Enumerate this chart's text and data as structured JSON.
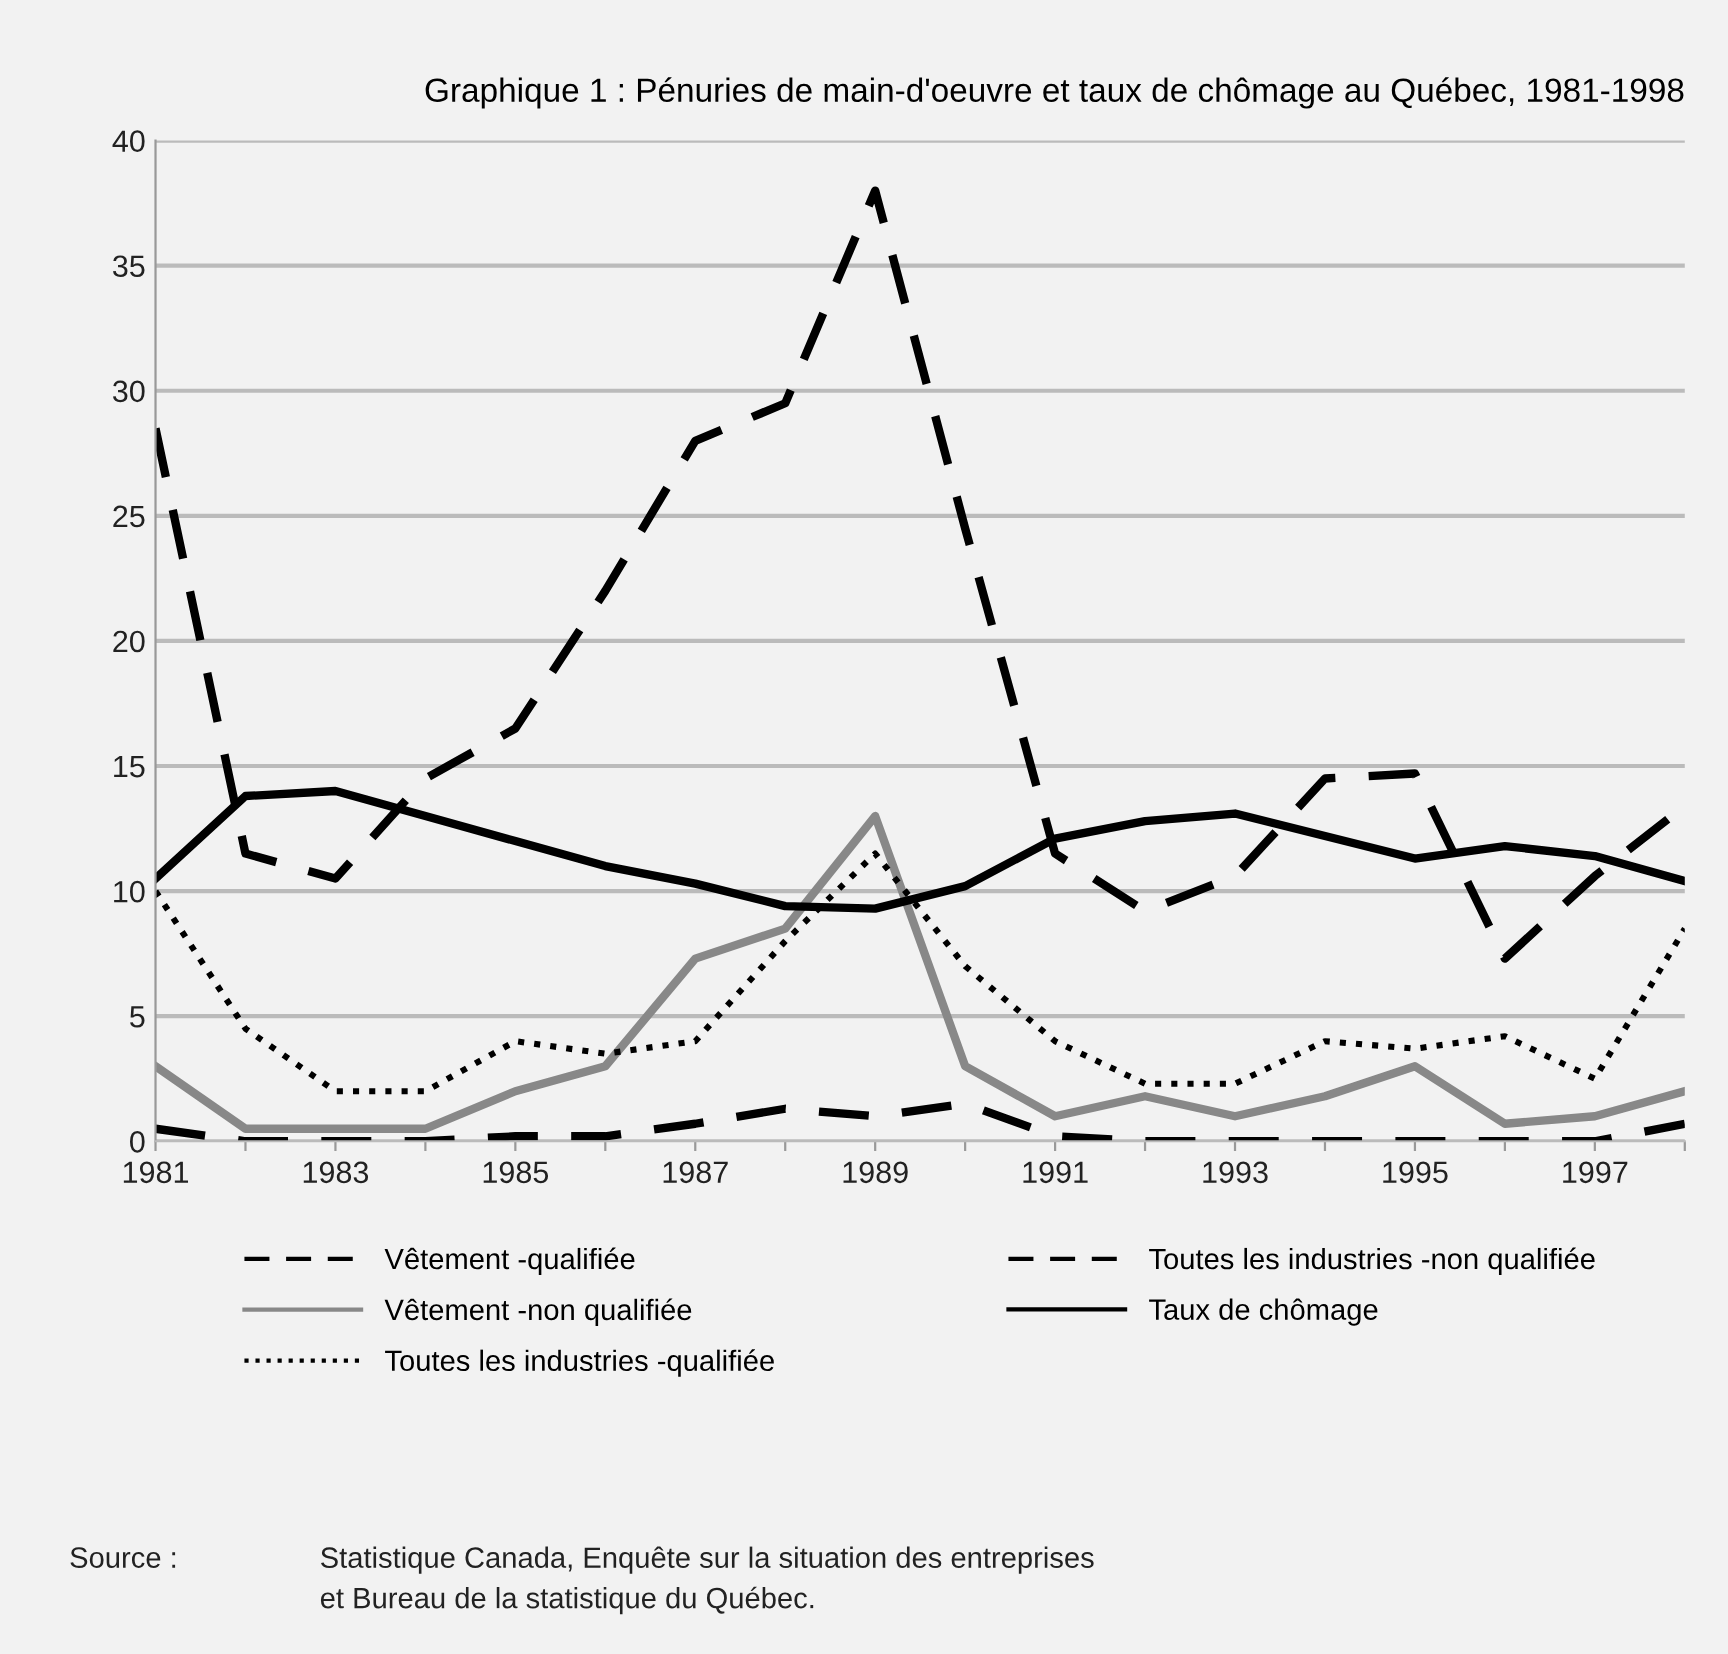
{
  "chart_data": {
    "type": "line",
    "title": "Graphique 1 : Pénuries de main-d'oeuvre et taux de chômage au Québec, 1981-1998",
    "x": [
      1981,
      1982,
      1983,
      1984,
      1985,
      1986,
      1987,
      1988,
      1989,
      1990,
      1991,
      1992,
      1993,
      1994,
      1995,
      1996,
      1997,
      1998
    ],
    "series": [
      {
        "name": "Vêtement -qualifiée",
        "color": "#000000",
        "line_style": "dashed",
        "values": [
          28.5,
          11.5,
          10.5,
          14.5,
          16.5,
          22,
          28,
          29.5,
          38,
          24.5,
          11.5,
          9.2,
          10.6,
          14.5,
          14.7,
          7.3,
          10.6,
          13.4
        ]
      },
      {
        "name": "Vêtement -non qualifiée",
        "color": "#888888",
        "line_style": "solid",
        "values": [
          3,
          0.5,
          0.5,
          0.5,
          2,
          3,
          7.3,
          8.5,
          13,
          3,
          1,
          1.8,
          1,
          1.8,
          3,
          0.7,
          1,
          2
        ]
      },
      {
        "name": "Toutes les industries -qualifiée",
        "color": "#000000",
        "line_style": "dotted",
        "values": [
          10,
          4.5,
          2,
          2,
          4,
          3.5,
          4,
          8,
          11.5,
          7,
          4,
          2.3,
          2.3,
          4,
          3.7,
          4.2,
          2.5,
          8.5
        ]
      },
      {
        "name": "Toutes les industries -non qualifiée",
        "color": "#000000",
        "line_style": "dashed",
        "values": [
          0.5,
          0,
          0,
          0,
          0.2,
          0.2,
          0.7,
          1.3,
          1,
          1.5,
          0.2,
          0,
          0,
          0,
          0,
          0,
          0,
          0.7
        ]
      },
      {
        "name": "Taux de chômage",
        "color": "#000000",
        "line_style": "solid",
        "values": [
          10.5,
          13.8,
          14,
          13,
          12,
          11,
          10.3,
          9.4,
          9.3,
          10.2,
          12.1,
          12.8,
          13.1,
          12.2,
          11.3,
          11.8,
          11.4,
          10.4
        ]
      }
    ],
    "xlim": [
      1981,
      1998
    ],
    "xticks": [
      1981,
      {
        "value": 1982,
        "label": null
      },
      1983,
      {
        "value": 1984,
        "label": null
      },
      1985,
      {
        "value": 1986,
        "label": null
      },
      1987,
      {
        "value": 1988,
        "label": null
      },
      1989,
      {
        "value": 1990,
        "label": null
      },
      1991,
      {
        "value": 1992,
        "label": null
      },
      1993,
      {
        "value": 1994,
        "label": null
      },
      1995,
      {
        "value": 1996,
        "label": null
      },
      1997,
      {
        "value": 1998,
        "label": null
      }
    ],
    "ylim": [
      0,
      40
    ],
    "yticks": [
      0,
      5,
      10,
      15,
      20,
      25,
      30,
      35,
      40
    ],
    "grid": "y",
    "legend": "bottom",
    "marker": "none",
    "annotations": [
      "Source :",
      "Statistique Canada, Enquête sur la situation des entreprises\net Bureau de la statistique du Québec."
    ]
  }
}
